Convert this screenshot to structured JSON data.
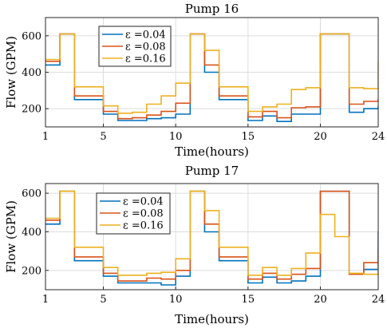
{
  "chart_data": [
    {
      "type": "line",
      "step": true,
      "title": "Pump 16",
      "xlabel": "Time(hours)",
      "ylabel": "Flow (GPM)",
      "xlim": [
        1,
        24
      ],
      "ylim": [
        100,
        700
      ],
      "xticks": [
        1,
        5,
        10,
        15,
        20,
        24
      ],
      "yticks": [
        200,
        400,
        600
      ],
      "grid": true,
      "legend_position": "top-left",
      "x": [
        1,
        2,
        3,
        4,
        5,
        6,
        7,
        8,
        9,
        10,
        11,
        12,
        13,
        14,
        15,
        16,
        17,
        18,
        19,
        20,
        21,
        22,
        23,
        24
      ],
      "series": [
        {
          "name": "ε =0.04",
          "color": "#0072BD",
          "values": [
            440,
            610,
            250,
            250,
            170,
            135,
            135,
            145,
            150,
            170,
            610,
            400,
            250,
            250,
            135,
            160,
            130,
            170,
            170,
            610,
            610,
            180,
            200,
            210
          ]
        },
        {
          "name": "ε =0.08",
          "color": "#D95319",
          "values": [
            460,
            610,
            270,
            270,
            185,
            145,
            150,
            165,
            185,
            230,
            610,
            440,
            270,
            270,
            155,
            185,
            150,
            205,
            210,
            610,
            610,
            225,
            240,
            250
          ]
        },
        {
          "name": "ε =0.16",
          "color": "#EDB120",
          "values": [
            470,
            610,
            320,
            320,
            215,
            175,
            180,
            225,
            270,
            340,
            610,
            520,
            320,
            320,
            185,
            210,
            225,
            305,
            315,
            610,
            610,
            315,
            310,
            455
          ]
        }
      ]
    },
    {
      "type": "line",
      "step": true,
      "title": "Pump 17",
      "xlabel": "Time(hours)",
      "ylabel": "Flow (GPM)",
      "xlim": [
        1,
        24
      ],
      "ylim": [
        100,
        650
      ],
      "xticks": [
        1,
        5,
        10,
        15,
        20,
        24
      ],
      "yticks": [
        200,
        400,
        600
      ],
      "grid": true,
      "legend_position": "top-left",
      "x": [
        1,
        2,
        3,
        4,
        5,
        6,
        7,
        8,
        9,
        10,
        11,
        12,
        13,
        14,
        15,
        16,
        17,
        18,
        19,
        20,
        21,
        22,
        23,
        24
      ],
      "series": [
        {
          "name": "ε =0.04",
          "color": "#0072BD",
          "values": [
            440,
            610,
            250,
            250,
            170,
            135,
            135,
            135,
            125,
            170,
            610,
            400,
            250,
            250,
            135,
            165,
            135,
            145,
            170,
            610,
            610,
            180,
            205,
            400
          ]
        },
        {
          "name": "ε =0.08",
          "color": "#D95319",
          "values": [
            460,
            610,
            270,
            270,
            185,
            145,
            145,
            160,
            155,
            200,
            610,
            440,
            270,
            270,
            155,
            185,
            155,
            180,
            210,
            610,
            610,
            180,
            240,
            305
          ]
        },
        {
          "name": "ε =0.16",
          "color": "#EDB120",
          "values": [
            470,
            610,
            320,
            320,
            215,
            175,
            175,
            185,
            190,
            260,
            610,
            510,
            320,
            320,
            175,
            215,
            175,
            210,
            290,
            490,
            375,
            185,
            180,
            220
          ]
        }
      ]
    }
  ]
}
